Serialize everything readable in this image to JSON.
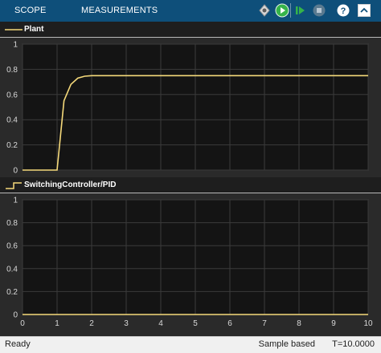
{
  "toolstrip": {
    "tabs": [
      {
        "label": "SCOPE"
      },
      {
        "label": "MEASUREMENTS"
      }
    ],
    "buttons": [
      "settings-pin-icon",
      "run-icon",
      "step-forward-icon",
      "stop-icon",
      "help-icon",
      "collapse-toolstrip-icon"
    ]
  },
  "plots": [
    {
      "legend": "Plant",
      "line_style": "line",
      "color": "#f5d97a",
      "chart_data": {
        "type": "line",
        "title": "",
        "xlabel": "",
        "ylabel": "",
        "xlim": [
          0,
          10
        ],
        "ylim": [
          0,
          1
        ],
        "grid": true,
        "legend_position": "top-left",
        "yticks": [
          0,
          0.2,
          0.4,
          0.6,
          0.8,
          1
        ],
        "ytick_labels": [
          "0",
          "0.2",
          "0.4",
          "0.6",
          "0.8",
          "1"
        ],
        "series": [
          {
            "name": "Plant",
            "x": [
              0,
              1,
              1.2,
              1.4,
              1.6,
              1.8,
              2.0,
              2.5,
              10
            ],
            "y": [
              0,
              0,
              0.55,
              0.68,
              0.73,
              0.745,
              0.75,
              0.75,
              0.75
            ]
          }
        ]
      }
    },
    {
      "legend": "SwitchingController/PID",
      "line_style": "step",
      "color": "#f5d97a",
      "chart_data": {
        "type": "line",
        "title": "",
        "xlabel": "",
        "ylabel": "",
        "xlim": [
          0,
          10
        ],
        "ylim": [
          0,
          1
        ],
        "grid": true,
        "legend_position": "top-left",
        "yticks": [
          0,
          0.2,
          0.4,
          0.6,
          0.8,
          1
        ],
        "ytick_labels": [
          "0",
          "0.2",
          "0.4",
          "0.6",
          "0.8",
          "1"
        ],
        "xticks": [
          0,
          1,
          2,
          3,
          4,
          5,
          6,
          7,
          8,
          9,
          10
        ],
        "xtick_labels": [
          "0",
          "1",
          "2",
          "3",
          "4",
          "5",
          "6",
          "7",
          "8",
          "9",
          "10"
        ],
        "series": [
          {
            "name": "SwitchingController/PID",
            "x": [
              0,
              10
            ],
            "y": [
              0,
              0
            ]
          }
        ]
      }
    }
  ],
  "status": {
    "left": "Ready",
    "mode": "Sample based",
    "time": "T=10.0000"
  }
}
